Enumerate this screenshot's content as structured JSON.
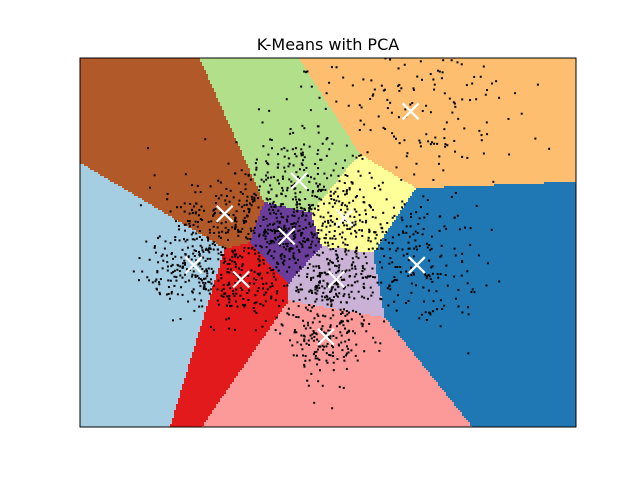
{
  "chart_data": {
    "type": "scatter",
    "title": "K-Means with PCA",
    "xlabel": "",
    "ylabel": "",
    "xticks": [],
    "yticks": [],
    "xlim": [
      -5.5,
      6.5
    ],
    "ylim": [
      -4.5,
      4.5
    ],
    "grid": false,
    "legend": "none",
    "n_clusters": 10,
    "centroids": [
      {
        "x": -2.0,
        "y": 0.7
      },
      {
        "x": -0.5,
        "y": 0.15
      },
      {
        "x": 2.5,
        "y": 3.2
      },
      {
        "x": 0.9,
        "y": 0.6
      },
      {
        "x": 2.65,
        "y": -0.55
      },
      {
        "x": 0.7,
        "y": -0.9
      },
      {
        "x": 0.45,
        "y": -2.3
      },
      {
        "x": -1.6,
        "y": -0.9
      },
      {
        "x": -2.75,
        "y": -0.55
      },
      {
        "x": -0.2,
        "y": 1.5
      }
    ],
    "region_colors": [
      "#b15928",
      "#6a3d9a",
      "#fdbf6f",
      "#ffff99",
      "#1f78b4",
      "#cab2d6",
      "#fb9a99",
      "#e31a1c",
      "#a6cee3",
      "#b2df8a"
    ],
    "point_color": "#000000",
    "centroid_color": "#ffffff",
    "centroid_marker": "x",
    "point_count": 1797
  }
}
